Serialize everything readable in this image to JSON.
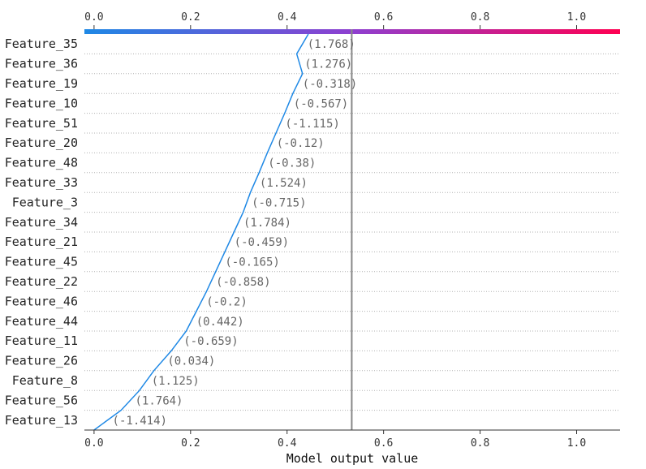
{
  "chart_data": {
    "type": "line",
    "chart_kind": "shap-decision-plot",
    "xlabel": "Model output value",
    "xlim": [
      -0.02,
      1.09
    ],
    "x_ticks": [
      "0.0",
      "0.2",
      "0.4",
      "0.6",
      "0.8",
      "1.0"
    ],
    "x_tick_values": [
      0.0,
      0.2,
      0.4,
      0.6,
      0.8,
      1.0
    ],
    "base_value": 0.534,
    "colorbar": {
      "from": "#1e88e5",
      "mid": "#8e3fd0",
      "to": "#ff0052"
    },
    "line_color": "#1e88e5",
    "features": [
      "Feature_35",
      "Feature_36",
      "Feature_19",
      "Feature_10",
      "Feature_51",
      "Feature_20",
      "Feature_48",
      "Feature_33",
      "Feature_3",
      "Feature_34",
      "Feature_21",
      "Feature_45",
      "Feature_22",
      "Feature_46",
      "Feature_44",
      "Feature_11",
      "Feature_26",
      "Feature_8",
      "Feature_56",
      "Feature_13"
    ],
    "feature_values": [
      "(1.768)",
      "(1.276)",
      "(-0.318)",
      "(-0.567)",
      "(-1.115)",
      "(-0.12)",
      "(-0.38)",
      "(1.524)",
      "(-0.715)",
      "(1.784)",
      "(-0.459)",
      "(-0.165)",
      "(-0.858)",
      "(-0.2)",
      "(0.442)",
      "(-0.659)",
      "(0.034)",
      "(1.125)",
      "(1.764)",
      "(-1.414)"
    ],
    "path_x": [
      0.0,
      0.056,
      0.094,
      0.124,
      0.16,
      0.191,
      0.212,
      0.233,
      0.252,
      0.271,
      0.29,
      0.309,
      0.324,
      0.342,
      0.359,
      0.377,
      0.395,
      0.412,
      0.432,
      0.42,
      0.444
    ]
  }
}
